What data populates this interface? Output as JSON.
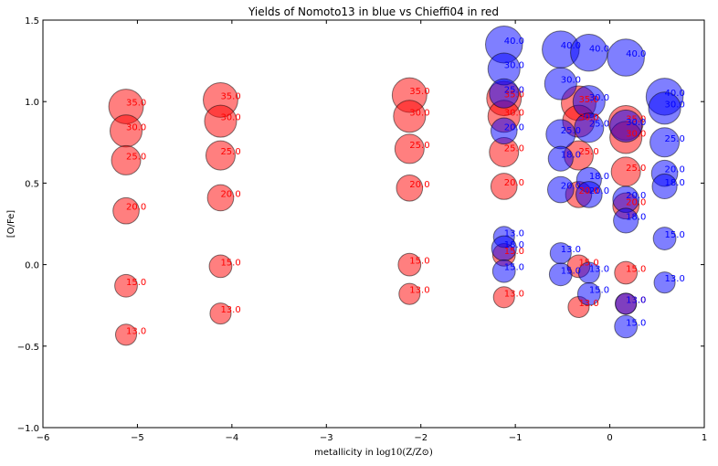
{
  "chart_data": {
    "type": "scatter",
    "title": "Yields of Nomoto13 in blue vs Chieffi04 in red",
    "xlabel_prefix": "metallicity in ",
    "xlabel_math": "log10(Z/Z⊙)",
    "ylabel": "[O/Fe]",
    "xlim": [
      -6,
      1
    ],
    "ylim": [
      -1.0,
      1.5
    ],
    "xticks": [
      -6,
      -5,
      -4,
      -3,
      -2,
      -1,
      0,
      1
    ],
    "xtick_labels": [
      "−6",
      "−5",
      "−4",
      "−3",
      "−2",
      "−1",
      "0",
      "1"
    ],
    "yticks": [
      -1.0,
      -0.5,
      0.0,
      0.5,
      1.0,
      1.5
    ],
    "ytick_labels": [
      "−1.0",
      "−0.5",
      "0.0",
      "0.5",
      "1.0",
      "1.5"
    ],
    "colors": {
      "blue": "#0000ff",
      "red": "#ff0000"
    },
    "series": [
      {
        "color": "red",
        "points": [
          {
            "x": -5.12,
            "y": 0.97,
            "label": "35.0"
          },
          {
            "x": -5.12,
            "y": 0.82,
            "label": "30.0"
          },
          {
            "x": -5.12,
            "y": 0.64,
            "label": "25.0"
          },
          {
            "x": -5.12,
            "y": 0.33,
            "label": "20.0"
          },
          {
            "x": -5.12,
            "y": -0.13,
            "label": "15.0"
          },
          {
            "x": -5.12,
            "y": -0.43,
            "label": "13.0"
          },
          {
            "x": -4.12,
            "y": 1.01,
            "label": "35.0"
          },
          {
            "x": -4.12,
            "y": 0.88,
            "label": "30.0"
          },
          {
            "x": -4.12,
            "y": 0.67,
            "label": "25.0"
          },
          {
            "x": -4.12,
            "y": 0.41,
            "label": "20.0"
          },
          {
            "x": -4.12,
            "y": -0.01,
            "label": "15.0"
          },
          {
            "x": -4.12,
            "y": -0.3,
            "label": "13.0"
          },
          {
            "x": -2.12,
            "y": 1.04,
            "label": "35.0"
          },
          {
            "x": -2.12,
            "y": 0.91,
            "label": "30.0"
          },
          {
            "x": -2.12,
            "y": 0.71,
            "label": "25.0"
          },
          {
            "x": -2.12,
            "y": 0.47,
            "label": "20.0"
          },
          {
            "x": -2.12,
            "y": 0.0,
            "label": "15.0"
          },
          {
            "x": -2.12,
            "y": -0.18,
            "label": "13.0"
          },
          {
            "x": -1.12,
            "y": 1.02,
            "label": "35.0"
          },
          {
            "x": -1.12,
            "y": 0.91,
            "label": "30.0"
          },
          {
            "x": -1.12,
            "y": 0.69,
            "label": "25.0"
          },
          {
            "x": -1.12,
            "y": 0.48,
            "label": "20.0"
          },
          {
            "x": -1.12,
            "y": 0.06,
            "label": "15.0"
          },
          {
            "x": -1.12,
            "y": -0.2,
            "label": "13.0"
          },
          {
            "x": -0.33,
            "y": 0.99,
            "label": "35.0"
          },
          {
            "x": -0.33,
            "y": 0.88,
            "label": "30.0"
          },
          {
            "x": -0.33,
            "y": 0.67,
            "label": "25.0"
          },
          {
            "x": -0.33,
            "y": 0.43,
            "label": "20.0"
          },
          {
            "x": -0.33,
            "y": -0.01,
            "label": "15.0"
          },
          {
            "x": -0.33,
            "y": -0.26,
            "label": "13.0"
          },
          {
            "x": 0.17,
            "y": 0.87,
            "label": "35.0"
          },
          {
            "x": 0.17,
            "y": 0.78,
            "label": "30.0"
          },
          {
            "x": 0.17,
            "y": 0.57,
            "label": "25.0"
          },
          {
            "x": 0.17,
            "y": 0.36,
            "label": "20.0"
          },
          {
            "x": 0.17,
            "y": -0.05,
            "label": "15.0"
          },
          {
            "x": 0.17,
            "y": -0.24,
            "label": "13.0"
          }
        ]
      },
      {
        "color": "blue",
        "points": [
          {
            "x": -1.12,
            "y": 1.35,
            "label": "40.0"
          },
          {
            "x": -1.12,
            "y": 1.2,
            "label": "30.0"
          },
          {
            "x": -1.12,
            "y": 1.05,
            "label": "25.0"
          },
          {
            "x": -1.12,
            "y": 0.82,
            "label": "20.0"
          },
          {
            "x": -1.12,
            "y": 0.17,
            "label": "13.0"
          },
          {
            "x": -1.12,
            "y": 0.1,
            "label": "18.0"
          },
          {
            "x": -1.12,
            "y": -0.04,
            "label": "15.0"
          },
          {
            "x": -0.52,
            "y": 1.32,
            "label": "40.0"
          },
          {
            "x": -0.52,
            "y": 1.11,
            "label": "30.0"
          },
          {
            "x": -0.52,
            "y": 0.8,
            "label": "25.0"
          },
          {
            "x": -0.52,
            "y": 0.65,
            "label": "18.0"
          },
          {
            "x": -0.52,
            "y": 0.46,
            "label": "20.0"
          },
          {
            "x": -0.52,
            "y": 0.07,
            "label": "13.0"
          },
          {
            "x": -0.52,
            "y": -0.06,
            "label": "15.0"
          },
          {
            "x": -0.22,
            "y": 1.3,
            "label": "40.0"
          },
          {
            "x": -0.22,
            "y": 1.0,
            "label": "30.0"
          },
          {
            "x": -0.22,
            "y": 0.84,
            "label": "25.0"
          },
          {
            "x": -0.22,
            "y": 0.52,
            "label": "18.0"
          },
          {
            "x": -0.22,
            "y": 0.43,
            "label": "20.0"
          },
          {
            "x": -0.22,
            "y": -0.05,
            "label": "13.0"
          },
          {
            "x": -0.22,
            "y": -0.18,
            "label": "15.0"
          },
          {
            "x": 0.17,
            "y": 1.27,
            "label": "40.0"
          },
          {
            "x": 0.17,
            "y": 0.85,
            "label": "30.0"
          },
          {
            "x": 0.17,
            "y": 0.4,
            "label": "20.0"
          },
          {
            "x": 0.17,
            "y": 0.27,
            "label": "18.0"
          },
          {
            "x": 0.17,
            "y": -0.24,
            "label": "13.0"
          },
          {
            "x": 0.17,
            "y": -0.38,
            "label": "15.0"
          },
          {
            "x": 0.58,
            "y": 1.03,
            "label": "40.0"
          },
          {
            "x": 0.58,
            "y": 0.96,
            "label": "30.0"
          },
          {
            "x": 0.58,
            "y": 0.75,
            "label": "25.0"
          },
          {
            "x": 0.58,
            "y": 0.56,
            "label": "20.0"
          },
          {
            "x": 0.58,
            "y": 0.48,
            "label": "18.0"
          },
          {
            "x": 0.58,
            "y": 0.16,
            "label": "15.0"
          },
          {
            "x": 0.58,
            "y": -0.11,
            "label": "13.0"
          }
        ]
      }
    ]
  }
}
